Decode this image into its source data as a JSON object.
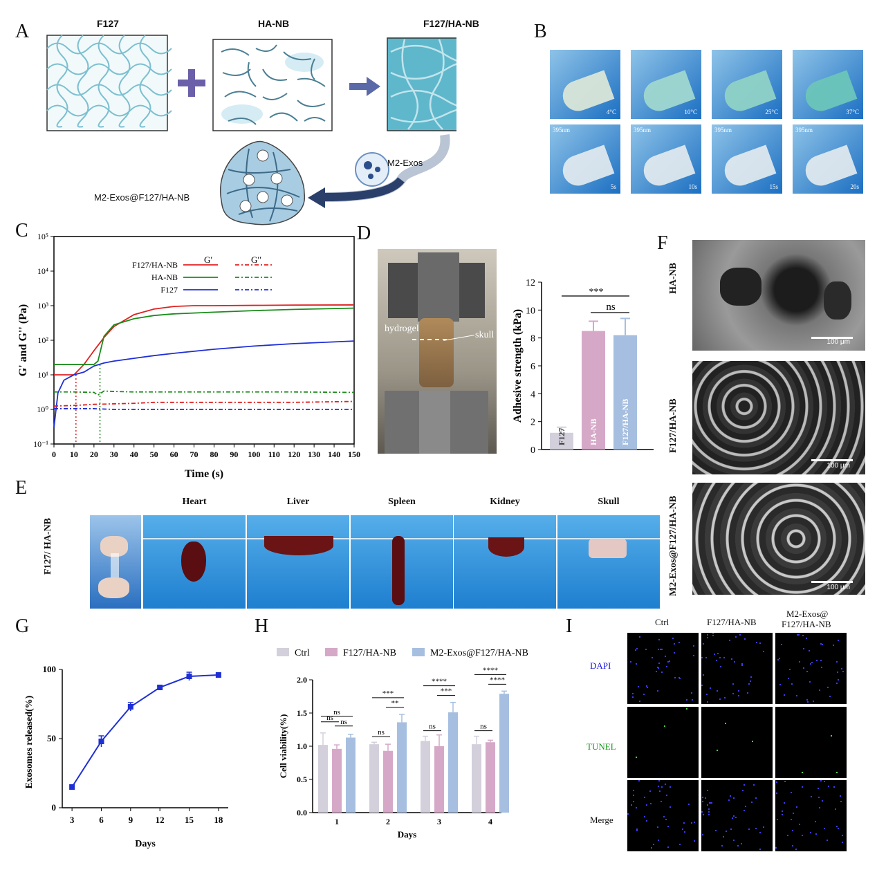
{
  "panels": {
    "A": "A",
    "B": "B",
    "C": "C",
    "D": "D",
    "E": "E",
    "F": "F",
    "G": "G",
    "H": "H",
    "I": "I"
  },
  "panelA": {
    "f127": "F127",
    "hanb": "HA-NB",
    "combo": "F127/HA-NB",
    "exos": "M2-Exos",
    "loaded": "M2-Exos@F127/HA-NB",
    "colors": {
      "grid": "#6fb3c4",
      "fiber": "#4a7f93",
      "dense": "#5bb3c9",
      "arrow": "#2b3f6b",
      "plus": "#6a5fa8"
    }
  },
  "panelB": {
    "temps": [
      "4°C",
      "10°C",
      "25°C",
      "37°C"
    ],
    "wavelength": "395nm",
    "times": [
      "5s",
      "10s",
      "15s",
      "20s"
    ]
  },
  "panelC": {
    "legend_head": {
      "g1": "G′",
      "g2": "G′′"
    },
    "series": [
      {
        "name": "F127/HA-NB",
        "color": "#e02020"
      },
      {
        "name": "HA-NB",
        "color": "#1a8c1a"
      },
      {
        "name": "F127",
        "color": "#1f2fd6"
      }
    ]
  },
  "panelD": {
    "photo_labels": {
      "hydrogel": "hydrogel",
      "skull": "skull"
    }
  },
  "panelE": {
    "row_label": "F127/ HA-NB",
    "organs": [
      "Heart",
      "Liver",
      "Spleen",
      "Kidney",
      "Skull"
    ]
  },
  "panelF": {
    "rows": [
      "HA-NB",
      "F127/HA-NB",
      "M2-Exos@F127/HA-NB"
    ],
    "scale": "100 μm"
  },
  "panelI": {
    "cols": [
      "Ctrl",
      "F127/HA-NB",
      "M2-Exos@ F127/HA-NB"
    ],
    "col3_line1": "M2-Exos@",
    "col3_line2": "F127/HA-NB",
    "rows": [
      "DAPI",
      "TUNEL",
      "Merge"
    ],
    "row_colors": [
      "#1a1ae0",
      "#1a9a1a",
      "#111111"
    ]
  },
  "chart_data": [
    {
      "id": "C",
      "type": "line",
      "xlabel": "Time (s)",
      "ylabel": "G' and G'' (Pa)",
      "ylog": true,
      "xlim": [
        0,
        150
      ],
      "ylim": [
        0.1,
        100000
      ],
      "xticks": [
        0,
        10,
        20,
        30,
        40,
        50,
        60,
        70,
        80,
        90,
        100,
        110,
        120,
        130,
        140,
        150
      ],
      "yticks": [
        "10⁻¹",
        "10⁰",
        "10¹",
        "10²",
        "10³",
        "10⁴",
        "10⁵"
      ],
      "series": [
        {
          "name": "F127/HA-NB G'",
          "x": [
            0,
            5,
            10,
            15,
            20,
            25,
            30,
            40,
            50,
            60,
            70,
            80,
            100,
            120,
            150
          ],
          "y": [
            10,
            10,
            10,
            20,
            50,
            120,
            250,
            550,
            800,
            950,
            1000,
            1000,
            1020,
            1040,
            1050
          ]
        },
        {
          "name": "HA-NB G'",
          "x": [
            0,
            5,
            10,
            15,
            20,
            22,
            25,
            30,
            40,
            50,
            60,
            80,
            100,
            120,
            150
          ],
          "y": [
            20,
            20,
            20,
            20,
            20,
            25,
            130,
            280,
            420,
            520,
            580,
            650,
            720,
            780,
            850
          ]
        },
        {
          "name": "F127 G'",
          "x": [
            0,
            2,
            5,
            10,
            15,
            20,
            25,
            30,
            40,
            50,
            60,
            80,
            100,
            120,
            150
          ],
          "y": [
            0.3,
            3,
            7,
            10,
            12,
            18,
            22,
            25,
            30,
            36,
            42,
            55,
            68,
            80,
            95
          ]
        },
        {
          "name": "F127/HA-NB G''",
          "x": [
            0,
            10,
            20,
            30,
            40,
            50,
            60,
            80,
            100,
            120,
            150
          ],
          "y": [
            1.25,
            1.3,
            1.4,
            1.45,
            1.5,
            1.6,
            1.6,
            1.6,
            1.6,
            1.6,
            1.7
          ]
        },
        {
          "name": "HA-NB G''",
          "x": [
            0,
            10,
            20,
            22,
            25,
            30,
            40,
            60,
            80,
            100,
            120,
            150
          ],
          "y": [
            3.2,
            3.2,
            3.1,
            2.6,
            3.4,
            3.3,
            3.2,
            3.2,
            3.2,
            3.2,
            3.2,
            3.1
          ]
        },
        {
          "name": "F127 G''",
          "x": [
            0,
            10,
            20,
            30,
            40,
            60,
            80,
            100,
            120,
            150
          ],
          "y": [
            1.05,
            1.05,
            1.05,
            1.0,
            1.0,
            1.0,
            1.0,
            1.0,
            1.0,
            1.0
          ]
        }
      ],
      "gel_points": [
        11,
        23
      ]
    },
    {
      "id": "D",
      "type": "bar",
      "ylabel": "Adhesive strength (kPa)",
      "ylim": [
        0,
        12
      ],
      "yticks": [
        0,
        2,
        4,
        6,
        8,
        10,
        12
      ],
      "categories": [
        "F127",
        "HA-NB",
        "F127/HA-NB"
      ],
      "values": [
        1.2,
        8.5,
        8.2
      ],
      "errors": [
        0.4,
        0.7,
        1.2
      ],
      "colors": [
        "#d3d0dc",
        "#d6a8c8",
        "#a6bfe0"
      ],
      "sig": [
        {
          "from": 0,
          "to": 2,
          "label": "***"
        },
        {
          "from": 1,
          "to": 2,
          "label": "ns"
        }
      ]
    },
    {
      "id": "G",
      "type": "line",
      "xlabel": "Days",
      "ylabel": "Exosomes released(%)",
      "xlim": [
        2,
        19
      ],
      "ylim": [
        0,
        100
      ],
      "xticks": [
        3,
        6,
        9,
        12,
        15,
        18
      ],
      "yticks": [
        0,
        50,
        100
      ],
      "x": [
        3,
        6,
        9,
        12,
        15,
        18
      ],
      "values": [
        15,
        48,
        73,
        87,
        95,
        96
      ],
      "errors": [
        0,
        4,
        3,
        1,
        3,
        1
      ],
      "color": "#1f2fd6"
    },
    {
      "id": "H",
      "type": "bar",
      "xlabel": "Days",
      "ylabel": "Cell viability(%)",
      "ylim": [
        0,
        2.0
      ],
      "yticks": [
        "0.0",
        "0.5",
        "1.0",
        "1.5",
        "2.0"
      ],
      "categories": [
        "1",
        "2",
        "3",
        "4"
      ],
      "series": [
        {
          "name": "Ctrl",
          "values": [
            1.02,
            1.03,
            1.08,
            1.03
          ],
          "errors": [
            0.18,
            0.03,
            0.07,
            0.12
          ],
          "color": "#d3d0dc"
        },
        {
          "name": "F127/HA-NB",
          "values": [
            0.96,
            0.93,
            1.0,
            1.06
          ],
          "errors": [
            0.06,
            0.1,
            0.17,
            0.03
          ],
          "color": "#d6a8c8"
        },
        {
          "name": "M2-Exos@F127/HA-NB",
          "values": [
            1.13,
            1.36,
            1.51,
            1.79
          ],
          "errors": [
            0.05,
            0.12,
            0.15,
            0.04
          ],
          "color": "#a6bfe0"
        }
      ],
      "sig": [
        [
          "ns",
          "ns",
          "ns"
        ],
        [
          "***",
          "**",
          "ns"
        ],
        [
          "****",
          "***",
          "ns"
        ],
        [
          "****",
          "****",
          "ns"
        ]
      ]
    }
  ]
}
